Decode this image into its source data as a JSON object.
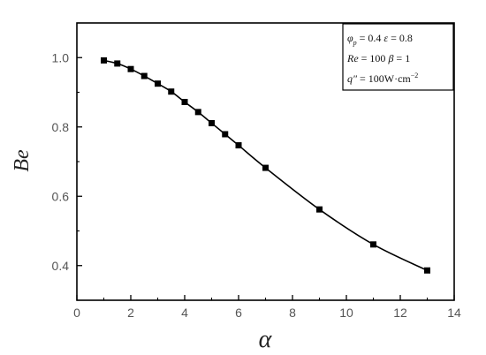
{
  "chart_data": {
    "type": "line",
    "xlabel": "α",
    "ylabel": "Be",
    "xlim": [
      0,
      14
    ],
    "ylim": [
      0.3,
      1.1
    ],
    "xticks": [
      "0",
      "2",
      "4",
      "6",
      "8",
      "10",
      "12",
      "14"
    ],
    "yticks": [
      "0.4",
      "0.6",
      "0.8",
      "1.0"
    ],
    "grid": false,
    "legend_placement": "top-right",
    "series": [
      {
        "marker": "square",
        "color": "#000000",
        "x": [
          1,
          1.5,
          2,
          2.5,
          3,
          3.5,
          4,
          4.5,
          5,
          5.5,
          6,
          7,
          9,
          11,
          13
        ],
        "y": [
          0.992,
          0.983,
          0.967,
          0.947,
          0.925,
          0.902,
          0.872,
          0.843,
          0.811,
          0.779,
          0.747,
          0.682,
          0.562,
          0.461,
          0.386
        ]
      }
    ],
    "annotation": {
      "lines": [
        "φp = 0.4  ε = 0.8",
        "Re = 100  β = 1",
        "q″ = 100W·cm−2"
      ]
    }
  }
}
